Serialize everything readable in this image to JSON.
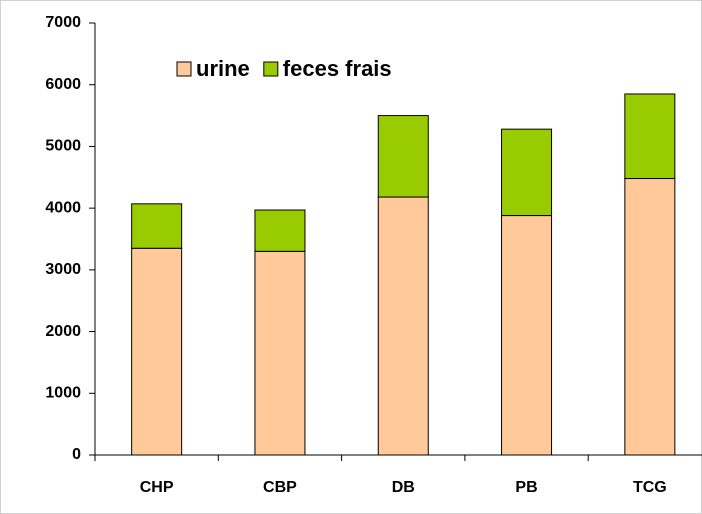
{
  "chart_data": {
    "type": "stacked_bar",
    "categories": [
      "CHP",
      "CBP",
      "DB",
      "PB",
      "TCG"
    ],
    "series": [
      {
        "name": "urine",
        "color": "#ffc99a",
        "values": [
          3350,
          3300,
          4180,
          3880,
          4480
        ]
      },
      {
        "name": "feces frais",
        "color": "#99cc00",
        "values": [
          720,
          670,
          1320,
          1400,
          1370
        ]
      }
    ],
    "ylim": [
      0,
      7000
    ],
    "yticks": [
      0,
      1000,
      2000,
      3000,
      4000,
      5000,
      6000,
      7000
    ],
    "grid": false,
    "legend": "top-left"
  }
}
